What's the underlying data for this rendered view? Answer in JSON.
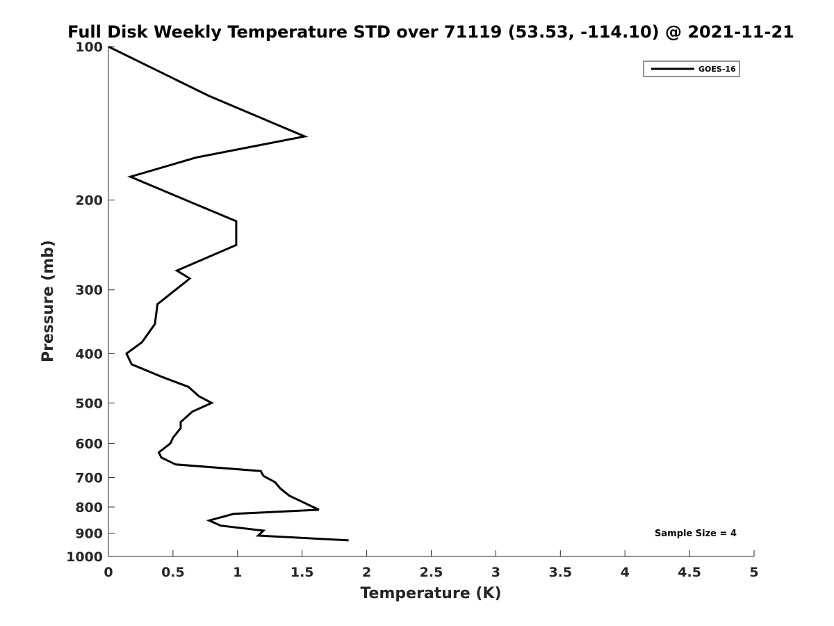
{
  "chart_data": {
    "type": "line",
    "title": "Full Disk Weekly Temperature STD over 71119 (53.53, -114.10) @ 2021-11-21",
    "xlabel": "Temperature (K)",
    "ylabel": "Pressure (mb)",
    "xlim": [
      0,
      5
    ],
    "ylim": [
      1000,
      100
    ],
    "y_scale": "log",
    "y_reversed": true,
    "x_ticks": [
      0,
      0.5,
      1,
      1.5,
      2,
      2.5,
      3,
      3.5,
      4,
      4.5,
      5
    ],
    "x_tick_labels": [
      "0",
      "0.5",
      "1",
      "1.5",
      "2",
      "2.5",
      "3",
      "3.5",
      "4",
      "4.5",
      "5"
    ],
    "y_ticks": [
      100,
      200,
      300,
      400,
      500,
      600,
      700,
      800,
      900,
      1000
    ],
    "y_tick_labels": [
      "100",
      "200",
      "300",
      "400",
      "500",
      "600",
      "700",
      "800",
      "900",
      "1000"
    ],
    "grid": false,
    "legend_position": "top-right",
    "series": [
      {
        "name": "GOES-16",
        "color": "#000000",
        "points": [
          [
            0.0,
            100
          ],
          [
            0.78,
            125
          ],
          [
            1.52,
            150
          ],
          [
            0.68,
            165
          ],
          [
            0.17,
            180
          ],
          [
            0.6,
            200
          ],
          [
            0.99,
            220
          ],
          [
            0.99,
            245
          ],
          [
            0.53,
            275
          ],
          [
            0.63,
            285
          ],
          [
            0.52,
            300
          ],
          [
            0.38,
            320
          ],
          [
            0.36,
            350
          ],
          [
            0.26,
            380
          ],
          [
            0.14,
            400
          ],
          [
            0.18,
            420
          ],
          [
            0.42,
            445
          ],
          [
            0.62,
            465
          ],
          [
            0.7,
            485
          ],
          [
            0.8,
            500
          ],
          [
            0.65,
            520
          ],
          [
            0.56,
            545
          ],
          [
            0.56,
            560
          ],
          [
            0.5,
            585
          ],
          [
            0.48,
            600
          ],
          [
            0.39,
            625
          ],
          [
            0.41,
            640
          ],
          [
            0.52,
            660
          ],
          [
            1.18,
            680
          ],
          [
            1.2,
            695
          ],
          [
            1.29,
            715
          ],
          [
            1.33,
            735
          ],
          [
            1.4,
            760
          ],
          [
            1.63,
            810
          ],
          [
            0.97,
            825
          ],
          [
            0.78,
            850
          ],
          [
            0.87,
            870
          ],
          [
            1.2,
            890
          ],
          [
            1.16,
            910
          ],
          [
            1.86,
            930
          ]
        ]
      }
    ],
    "annotations": [
      "Sample Size = 4"
    ]
  }
}
